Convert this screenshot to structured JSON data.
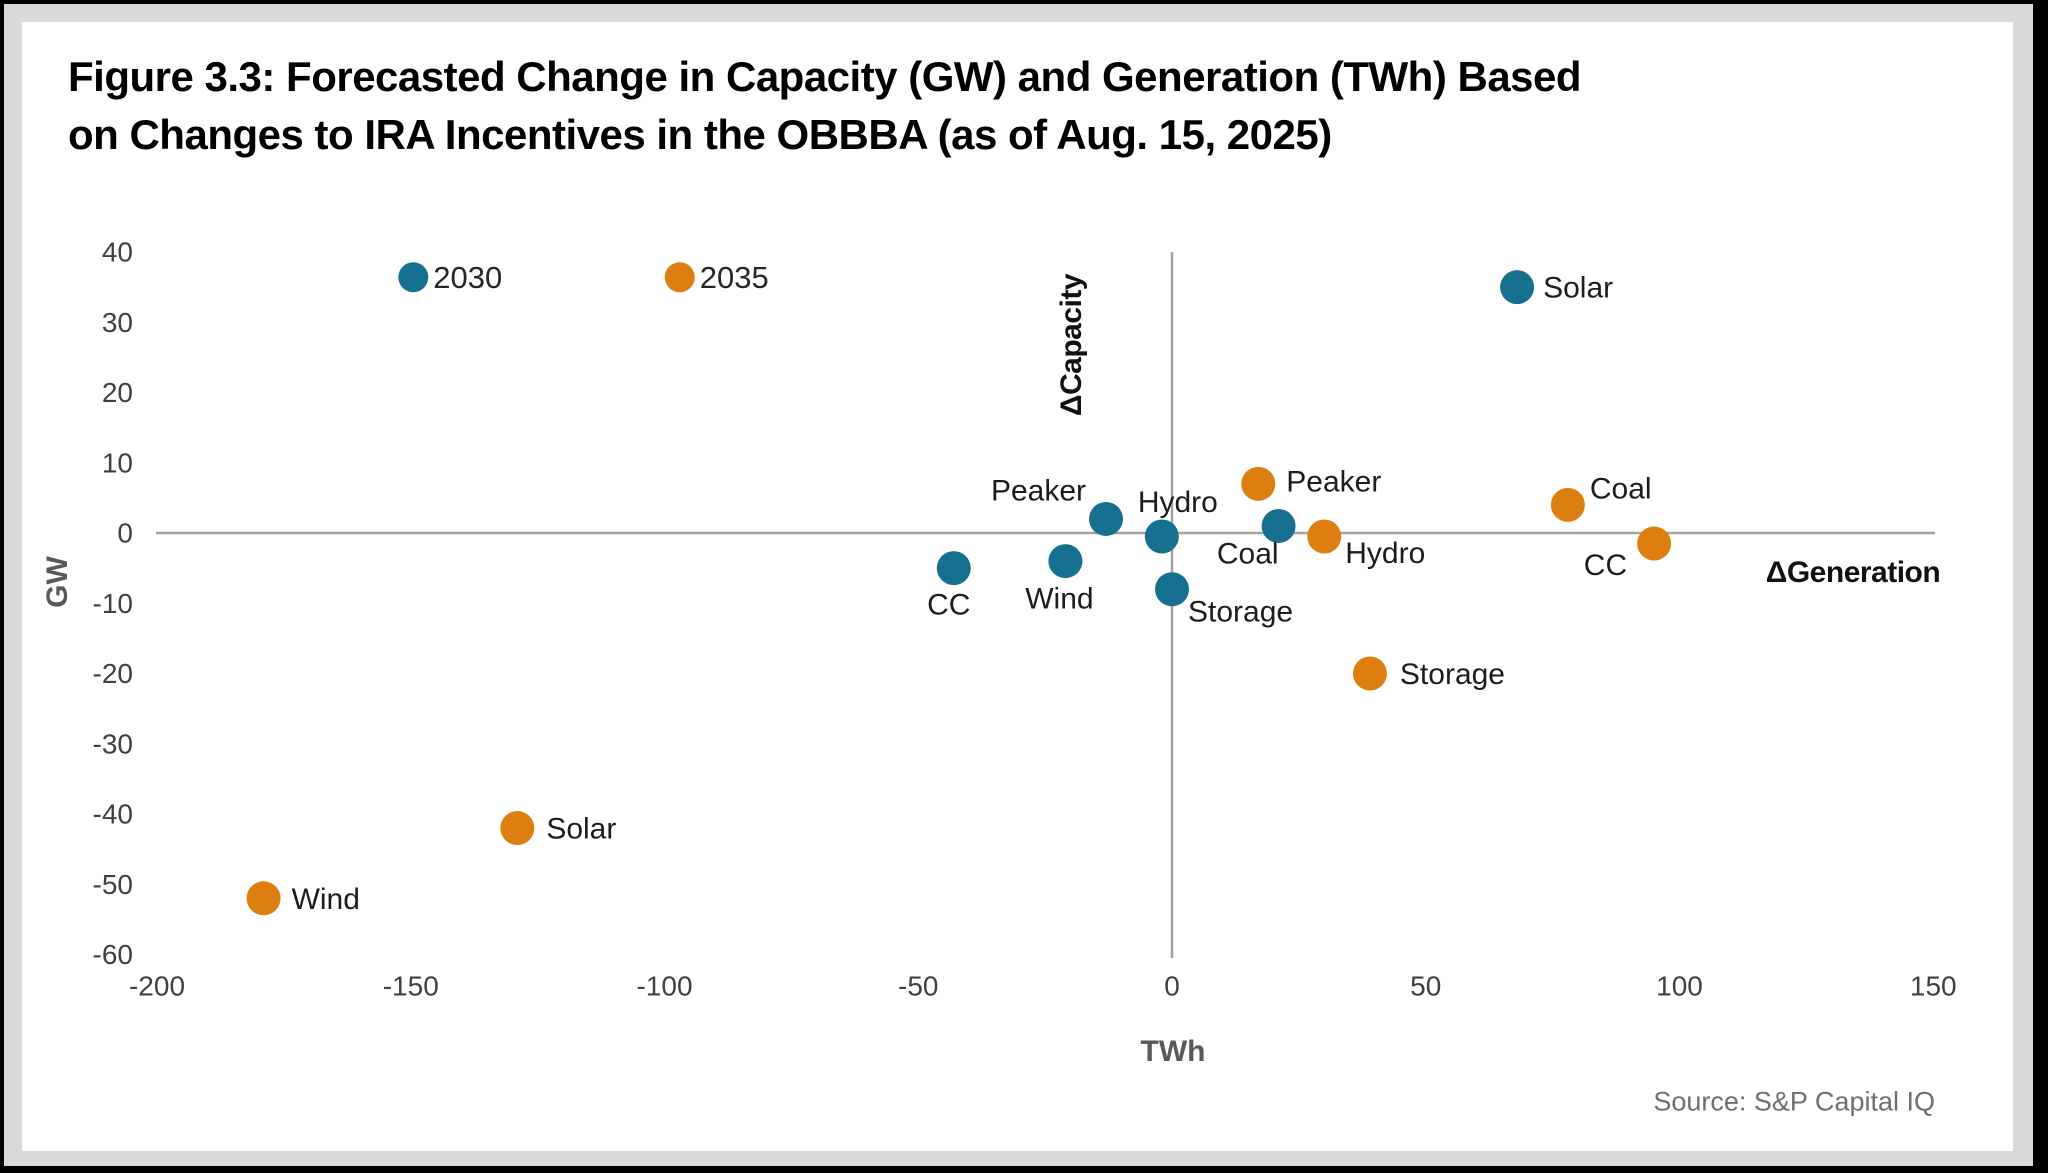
{
  "title_lines": [
    "Figure 3.3: Forecasted Change in Capacity (GW) and Generation (TWh) Based",
    "on Changes to IRA Incentives in the OBBBA (as of Aug. 15, 2025)"
  ],
  "source": "Source: S&P Capital IQ",
  "chart_data": {
    "type": "scatter",
    "title": "Figure 3.3: Forecasted Change in Capacity (GW) and Generation (TWh) Based on Changes to IRA Incentives in the OBBBA (as of Aug. 15, 2025)",
    "xlabel": "TWh",
    "ylabel": "GW",
    "inner_axis_labels": {
      "x": "ΔGeneration",
      "y": "ΔCapacity"
    },
    "xlim": [
      -200,
      150
    ],
    "ylim": [
      -60,
      40
    ],
    "x_ticks": [
      -200,
      -150,
      -100,
      -50,
      0,
      50,
      100,
      150
    ],
    "y_ticks": [
      40,
      30,
      20,
      10,
      0,
      -10,
      -20,
      -30,
      -40,
      -50,
      -60
    ],
    "grid": false,
    "axis_color": "#a3a3a3",
    "tick_color": "#404040",
    "label_color": "#1c1c1c",
    "legend": {
      "position": "inside-top-left",
      "entries": [
        {
          "label": "2030",
          "color": "#17708F",
          "x": -149.5,
          "y": 36.4
        },
        {
          "label": "2035",
          "color": "#DD7E10",
          "x": -97,
          "y": 36.4
        }
      ]
    },
    "series": [
      {
        "name": "2030",
        "color": "#17708F",
        "points": [
          {
            "label": "Solar",
            "x": 68,
            "y": 35,
            "anchor": "start",
            "label_offset": [
              26,
              1
            ]
          },
          {
            "label": "Peaker",
            "x": -13,
            "y": 2,
            "anchor": "end",
            "label_offset": [
              -20,
              -28
            ]
          },
          {
            "label": "Hydro",
            "x": -2,
            "y": -0.5,
            "anchor": "middle",
            "label_offset": [
              16,
              -34
            ]
          },
          {
            "label": "Coal",
            "x": 21,
            "y": 1,
            "anchor": "end",
            "label_offset": [
              0,
              28
            ]
          },
          {
            "label": "Wind",
            "x": -21,
            "y": -4,
            "anchor": "middle",
            "label_offset": [
              -6,
              38
            ]
          },
          {
            "label": "CC",
            "x": -43,
            "y": -5,
            "anchor": "middle",
            "label_offset": [
              -5,
              37
            ]
          },
          {
            "label": "Storage",
            "x": 0,
            "y": -8,
            "anchor": "start",
            "label_offset": [
              16,
              23
            ]
          }
        ]
      },
      {
        "name": "2035",
        "color": "#DD7E10",
        "points": [
          {
            "label": "Peaker",
            "x": 17,
            "y": 7,
            "anchor": "start",
            "label_offset": [
              28,
              -2
            ]
          },
          {
            "label": "Hydro",
            "x": 30,
            "y": -0.5,
            "anchor": "start",
            "label_offset": [
              21,
              17
            ]
          },
          {
            "label": "Coal",
            "x": 78,
            "y": 4,
            "anchor": "start",
            "label_offset": [
              22,
              -16
            ]
          },
          {
            "label": "CC",
            "x": 95,
            "y": -1.5,
            "anchor": "end",
            "label_offset": [
              -27,
              22
            ]
          },
          {
            "label": "Storage",
            "x": 39,
            "y": -20,
            "anchor": "start",
            "label_offset": [
              30,
              1
            ]
          },
          {
            "label": "Solar",
            "x": -129,
            "y": -42,
            "anchor": "start",
            "label_offset": [
              29,
              1
            ]
          },
          {
            "label": "Wind",
            "x": -179,
            "y": -52,
            "anchor": "start",
            "label_offset": [
              28,
              1
            ]
          }
        ]
      }
    ]
  }
}
